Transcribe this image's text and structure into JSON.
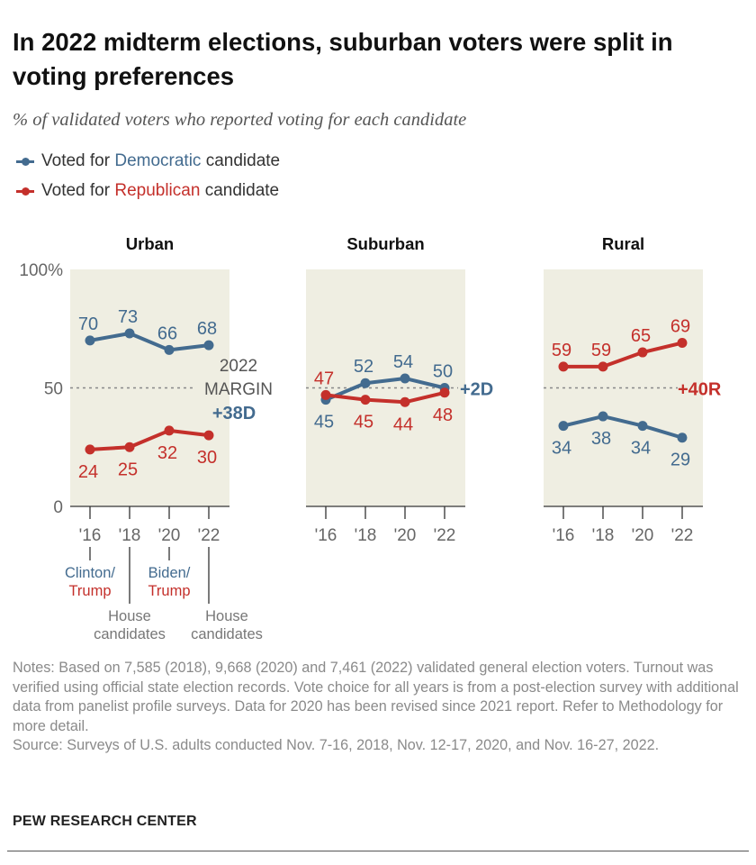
{
  "title": "In 2022 midterm elections, suburban voters were split in voting preferences",
  "subtitle": "% of validated voters who reported voting for each candidate",
  "legend": [
    {
      "prefix": "Voted for ",
      "party": "Democratic",
      "suffix": " candidate",
      "color": "#436b8f"
    },
    {
      "prefix": "Voted for ",
      "party": "Republican",
      "suffix": " candidate",
      "color": "#c4302b"
    }
  ],
  "colors": {
    "democratic": "#436b8f",
    "republican": "#c4302b",
    "panel_bg": "#efeee2",
    "axis_text": "#666666"
  },
  "chart_data": {
    "type": "line",
    "x": [
      "'16",
      "'18",
      "'20",
      "'22"
    ],
    "ylim": [
      0,
      100
    ],
    "yticks": [
      "100%",
      "50",
      "0"
    ],
    "reference_line": 50,
    "panels": [
      {
        "title": "Urban",
        "series": [
          {
            "name": "Voted for Democratic candidate",
            "values": [
              70,
              73,
              66,
              68
            ]
          },
          {
            "name": "Voted for Republican candidate",
            "values": [
              24,
              25,
              32,
              30
            ]
          }
        ],
        "margin_label": [
          "2022",
          "MARGIN"
        ],
        "margin": "+38D",
        "margin_party": "democratic"
      },
      {
        "title": "Suburban",
        "series": [
          {
            "name": "Voted for Democratic candidate",
            "values": [
              45,
              52,
              54,
              50
            ]
          },
          {
            "name": "Voted for Republican candidate",
            "values": [
              47,
              45,
              44,
              48
            ]
          }
        ],
        "margin": "+2D",
        "margin_party": "democratic"
      },
      {
        "title": "Rural",
        "series": [
          {
            "name": "Voted for Democratic candidate",
            "values": [
              34,
              38,
              34,
              29
            ]
          },
          {
            "name": "Voted for Republican candidate",
            "values": [
              59,
              59,
              65,
              69
            ]
          }
        ],
        "margin": "+40R",
        "margin_party": "republican"
      }
    ],
    "annotations": [
      {
        "year": "'16",
        "lines": [
          {
            "text": "Clinton/",
            "party": "democratic"
          },
          {
            "text": "Trump",
            "party": "republican"
          }
        ]
      },
      {
        "year": "'18",
        "lines": [
          {
            "text": "House",
            "party": "none"
          },
          {
            "text": "candidates",
            "party": "none"
          }
        ]
      },
      {
        "year": "'20",
        "lines": [
          {
            "text": "Biden/",
            "party": "democratic"
          },
          {
            "text": "Trump",
            "party": "republican"
          }
        ]
      },
      {
        "year": "'22",
        "lines": [
          {
            "text": "House",
            "party": "none"
          },
          {
            "text": "candidates",
            "party": "none"
          }
        ]
      }
    ]
  },
  "notes": "Notes: Based on 7,585 (2018), 9,668 (2020) and 7,461 (2022) validated general election voters. Turnout was verified using official state election records. Vote choice for all years is from a post-election survey with additional data from panelist profile surveys. Data for 2020 has been revised since 2021 report. Refer to Methodology for more detail.",
  "source": "Source: Surveys of U.S. adults conducted Nov. 7-16, 2018, Nov. 12-17, 2020, and Nov. 16-27, 2022.",
  "brand": "PEW RESEARCH CENTER"
}
